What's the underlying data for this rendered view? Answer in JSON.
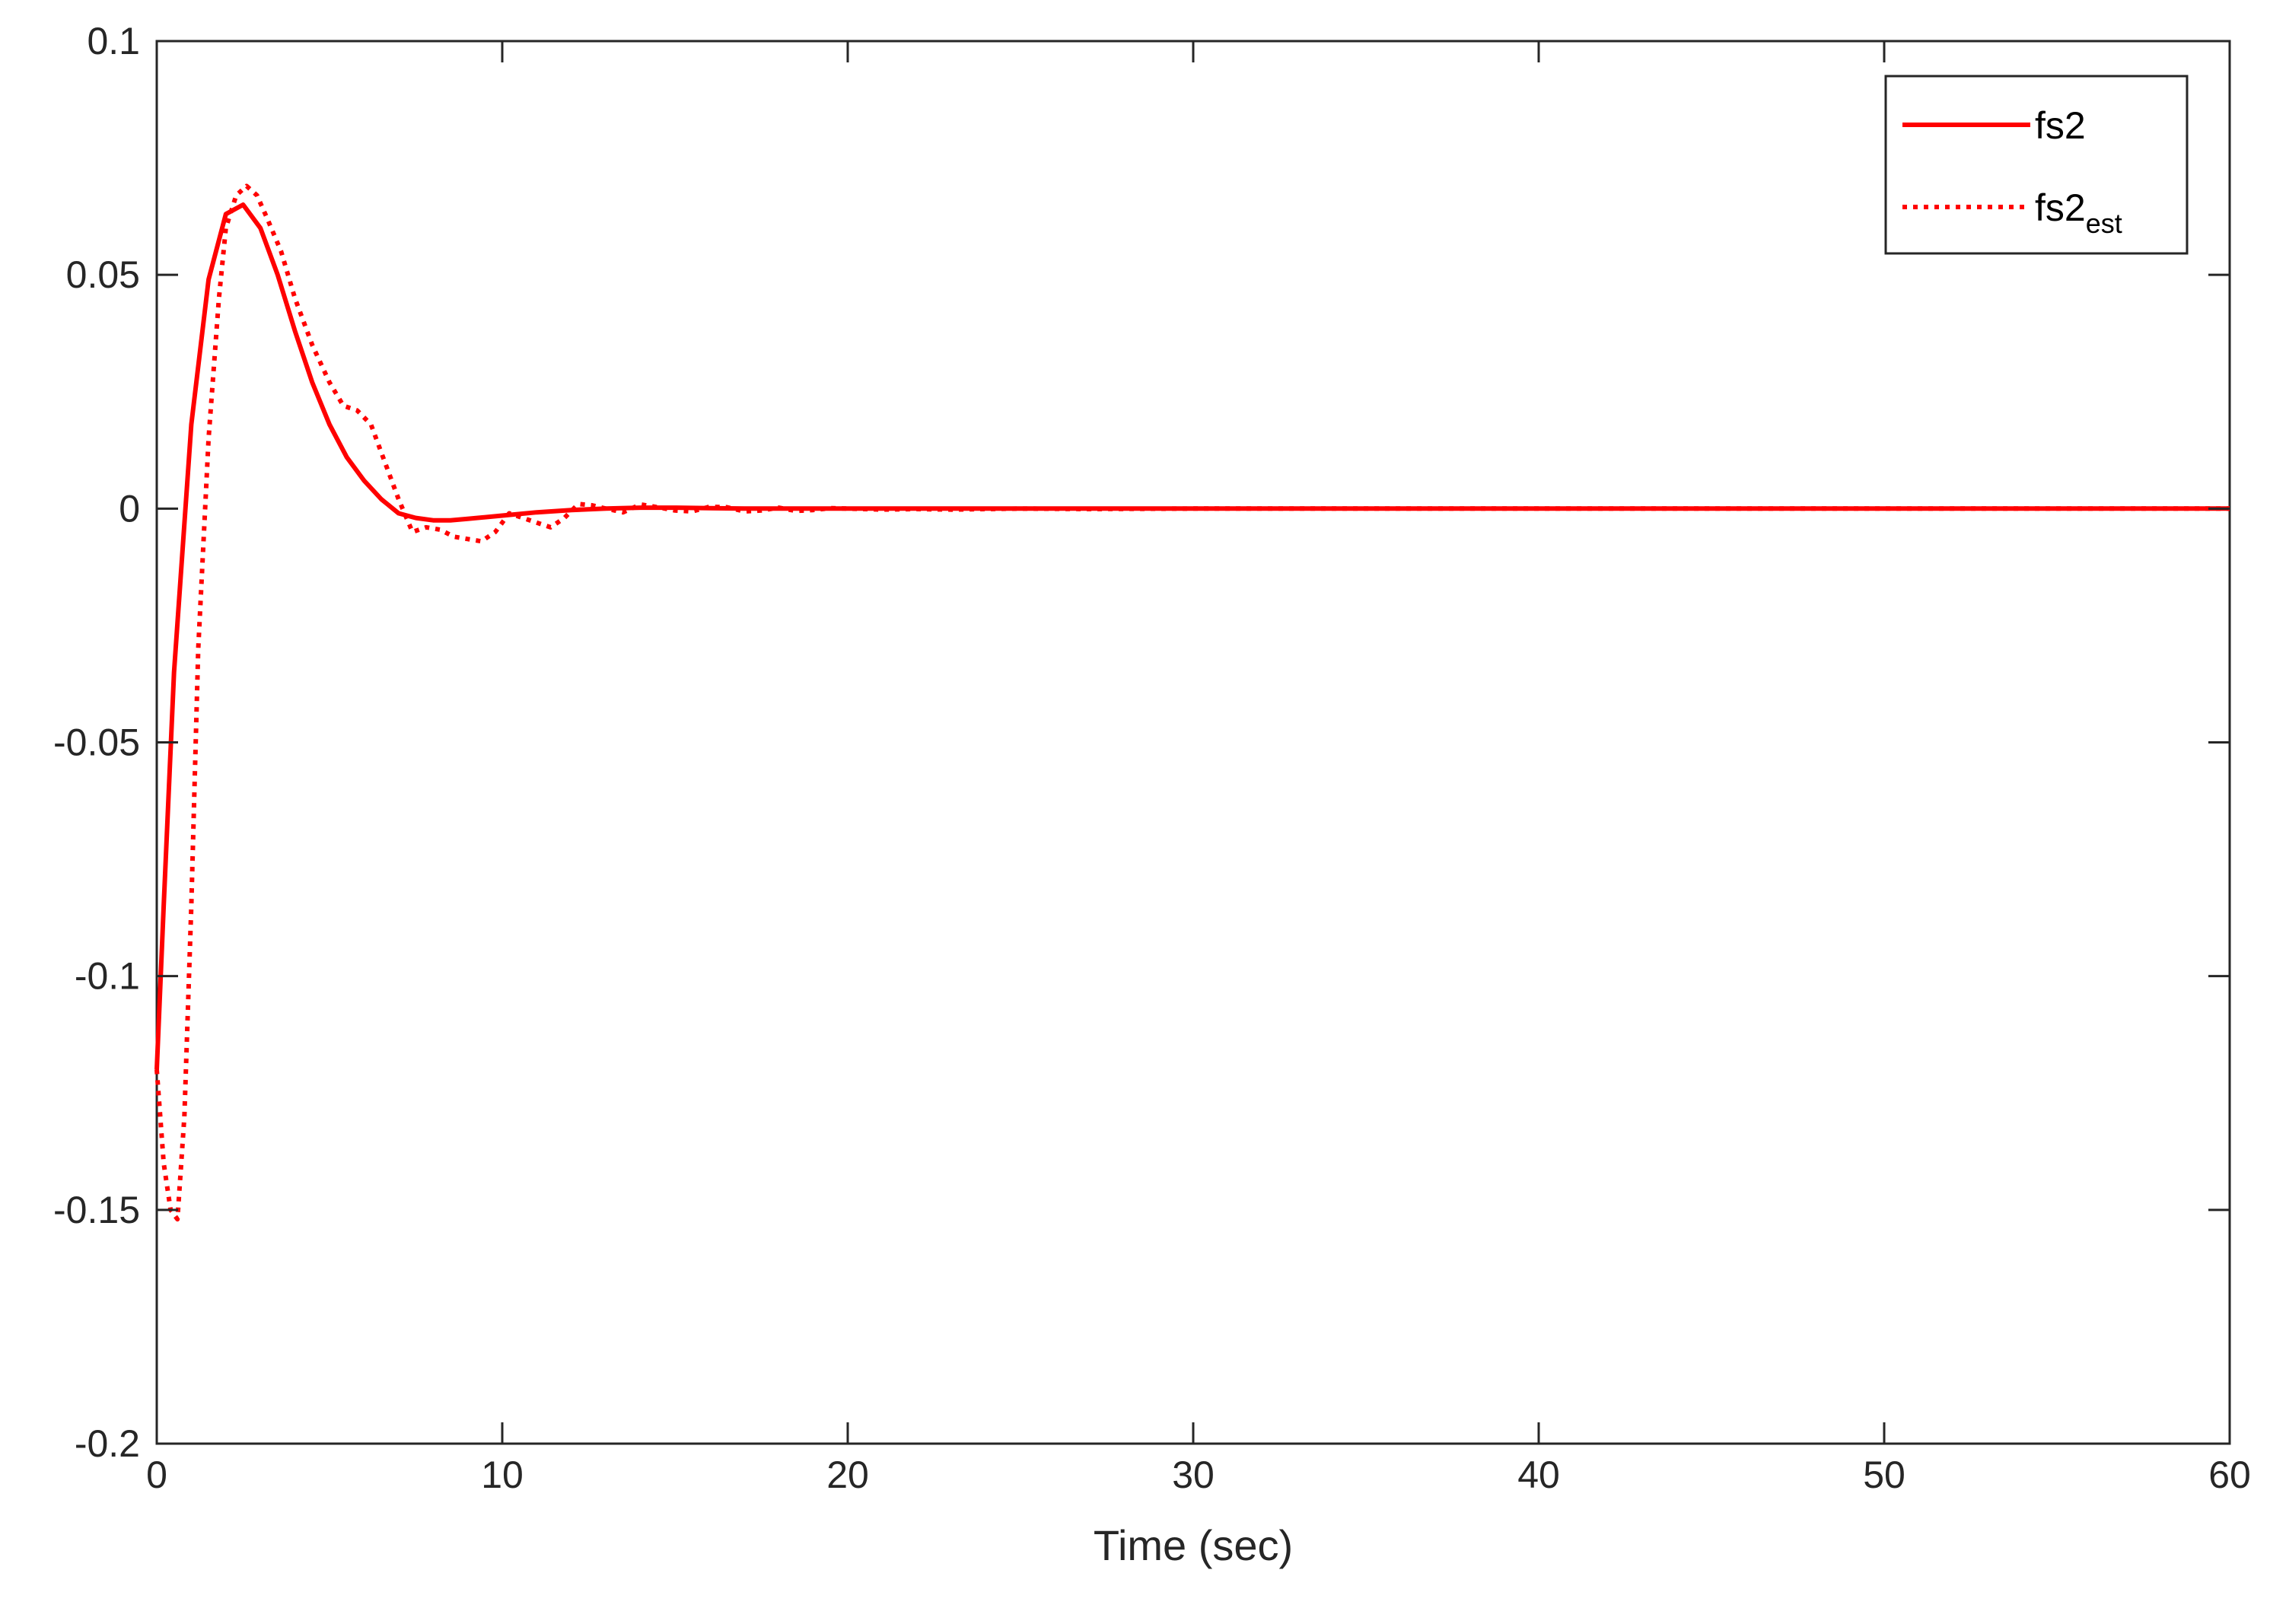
{
  "chart_data": {
    "type": "line",
    "title": "",
    "xlabel": "Time (sec)",
    "ylabel": "",
    "xlim": [
      0,
      60
    ],
    "ylim": [
      -0.2,
      0.1
    ],
    "x_ticks": [
      0,
      10,
      20,
      30,
      40,
      50,
      60
    ],
    "x_tick_labels": [
      "0",
      "10",
      "20",
      "30",
      "40",
      "50",
      "60"
    ],
    "y_ticks": [
      0.1,
      0.05,
      0,
      -0.05,
      -0.1,
      -0.15,
      -0.2
    ],
    "y_tick_labels": [
      "0.1",
      "0.05",
      "0",
      "-0.05",
      "-0.1",
      "-0.15",
      "-0.2"
    ],
    "grid": false,
    "legend_position": "top-right",
    "colors": {
      "series": "#ff0000",
      "axes": "#262626",
      "background": "#ffffff"
    },
    "series": [
      {
        "name": "fs2",
        "legend_main": "fs2",
        "legend_sub": "",
        "line_style": "solid",
        "x": [
          0,
          0.2,
          0.5,
          1.0,
          1.5,
          2.0,
          2.5,
          3.0,
          3.5,
          4.0,
          4.5,
          5.0,
          5.5,
          6.0,
          6.5,
          7.0,
          7.5,
          8.0,
          8.5,
          9.0,
          10.0,
          11.0,
          12.0,
          13.0,
          14.0,
          15.0,
          16.0,
          17.0,
          18.0,
          20.0,
          25.0,
          30.0,
          40.0,
          50.0,
          60.0
        ],
        "y": [
          -0.12,
          -0.085,
          -0.035,
          0.018,
          0.049,
          0.063,
          0.065,
          0.06,
          0.05,
          0.038,
          0.027,
          0.018,
          0.011,
          0.006,
          0.002,
          -0.001,
          -0.002,
          -0.0025,
          -0.0025,
          -0.0022,
          -0.0015,
          -0.0008,
          -0.0003,
          0.0,
          0.0002,
          0.0002,
          0.0001,
          0.0,
          0.0,
          0.0,
          0.0,
          0.0,
          0.0,
          0.0,
          0.0
        ]
      },
      {
        "name": "fs2_est",
        "legend_main": "fs2",
        "legend_sub": "est",
        "line_style": "dotted",
        "x": [
          0,
          0.2,
          0.4,
          0.6,
          0.8,
          1.0,
          1.2,
          1.5,
          1.8,
          2.0,
          2.3,
          2.6,
          2.9,
          3.2,
          3.6,
          4.0,
          4.5,
          5.0,
          5.4,
          5.8,
          6.2,
          6.6,
          7.0,
          7.4,
          7.8,
          8.2,
          8.6,
          9.0,
          9.4,
          9.8,
          10.2,
          10.6,
          11.0,
          11.4,
          11.8,
          12.2,
          12.6,
          13.0,
          13.5,
          14.0,
          14.5,
          15.0,
          15.5,
          16.0,
          16.5,
          17.0,
          17.5,
          18.0,
          18.5,
          19.0,
          19.5,
          20.0,
          21.0,
          22.0,
          23.0,
          24.0,
          25.0,
          27.0,
          30.0,
          35.0,
          40.0,
          45.0,
          50.0,
          55.0,
          60.0
        ],
        "y": [
          -0.12,
          -0.14,
          -0.15,
          -0.152,
          -0.13,
          -0.085,
          -0.03,
          0.015,
          0.045,
          0.06,
          0.067,
          0.069,
          0.067,
          0.062,
          0.055,
          0.045,
          0.035,
          0.027,
          0.022,
          0.021,
          0.018,
          0.01,
          0.002,
          -0.005,
          -0.004,
          -0.0045,
          -0.006,
          -0.0065,
          -0.007,
          -0.005,
          -0.001,
          -0.002,
          -0.003,
          -0.004,
          -0.002,
          0.001,
          0.0007,
          0.0,
          -0.0008,
          0.0009,
          0.0003,
          -0.0004,
          -0.0006,
          0.0004,
          0.0003,
          -0.0006,
          -0.0004,
          0.0002,
          -0.0005,
          -0.0003,
          0.0001,
          0.0,
          -0.0002,
          -0.0001,
          -0.0002,
          -0.0001,
          0.0,
          -0.0001,
          0.0,
          0.0,
          0.0,
          0.0,
          0.0,
          0.0,
          0.0
        ]
      }
    ]
  }
}
